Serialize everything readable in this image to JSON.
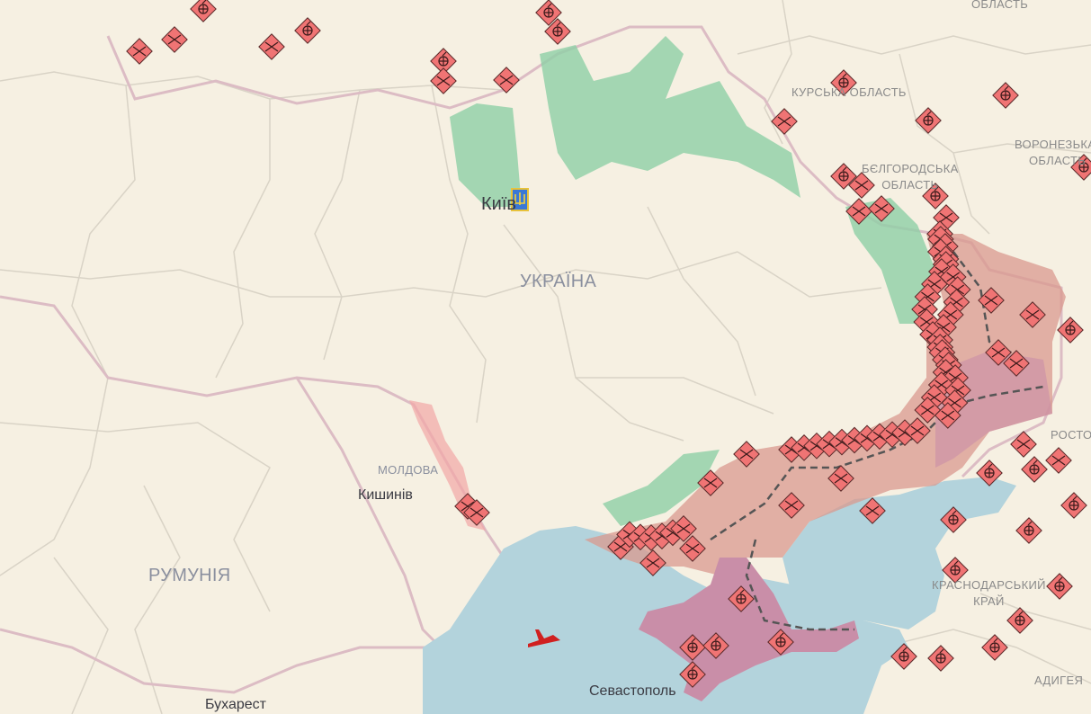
{
  "map": {
    "regions": {
      "oblast_top": "ОБЛАСТЬ",
      "kursk": "КУРСЬКА ОБЛАСТЬ",
      "belgorod_1": "БЄЛГОРОДСЬКА",
      "belgorod_2": "ОБЛАСТЬ",
      "voronezh_1": "ВОРОНЕЗЬКА",
      "voronezh_2": "ОБЛАСТЬ",
      "rostov": "РОСТОВСЬКА",
      "krasnodar_1": "КРАСНОДАРСЬКИЙ",
      "krasnodar_2": "КРАЙ",
      "adygea": "АДИГЕЯ",
      "ukraine": "УКРАЇНА",
      "moldova": "МОЛДОВА",
      "romania": "РУМУНІЯ"
    },
    "cities": {
      "kyiv": "Київ",
      "chisinau": "Кишинів",
      "bucharest": "Бухарест",
      "sevastopol": "Севастополь"
    },
    "colors": {
      "land": "#f6f0e2",
      "sea": "#b3d3dc",
      "occupied": "#d99a8f",
      "crimea": "#c98ea8",
      "liberated": "#8fd0a6",
      "marker": "#f07474",
      "border": "#d8b8c0"
    },
    "marker_types": [
      "explosion-icon",
      "crossed-swords-icon"
    ],
    "icons": {
      "kyiv_emblem": "trident-icon",
      "aircraft": "plane-icon"
    }
  }
}
